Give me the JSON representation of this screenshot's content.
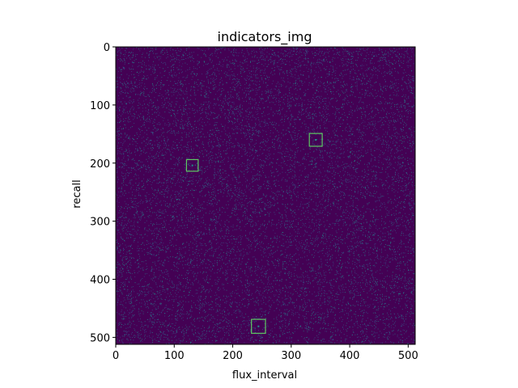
{
  "chart_data": {
    "type": "heatmap",
    "title": "indicators_img",
    "xlabel": "flux_interval",
    "ylabel": "recall",
    "xlim": [
      0,
      512
    ],
    "ylim": [
      512,
      0
    ],
    "image_size": [
      512,
      512
    ],
    "colormap": "viridis",
    "background_color": "#440154",
    "speckle_colors": [
      "#3b528b",
      "#31688e",
      "#21918c"
    ],
    "box_color": "#5ec962",
    "xticks": [
      0,
      100,
      200,
      300,
      400,
      500
    ],
    "yticks": [
      0,
      100,
      200,
      300,
      400,
      500
    ],
    "xtick_labels": [
      "0",
      "100",
      "200",
      "300",
      "400",
      "500"
    ],
    "ytick_labels": [
      "0",
      "100",
      "200",
      "300",
      "400",
      "500"
    ],
    "indicators": [
      {
        "x": 342,
        "y": 160,
        "size": 22
      },
      {
        "x": 131,
        "y": 204,
        "size": 20
      },
      {
        "x": 244,
        "y": 481,
        "size": 24
      }
    ]
  }
}
